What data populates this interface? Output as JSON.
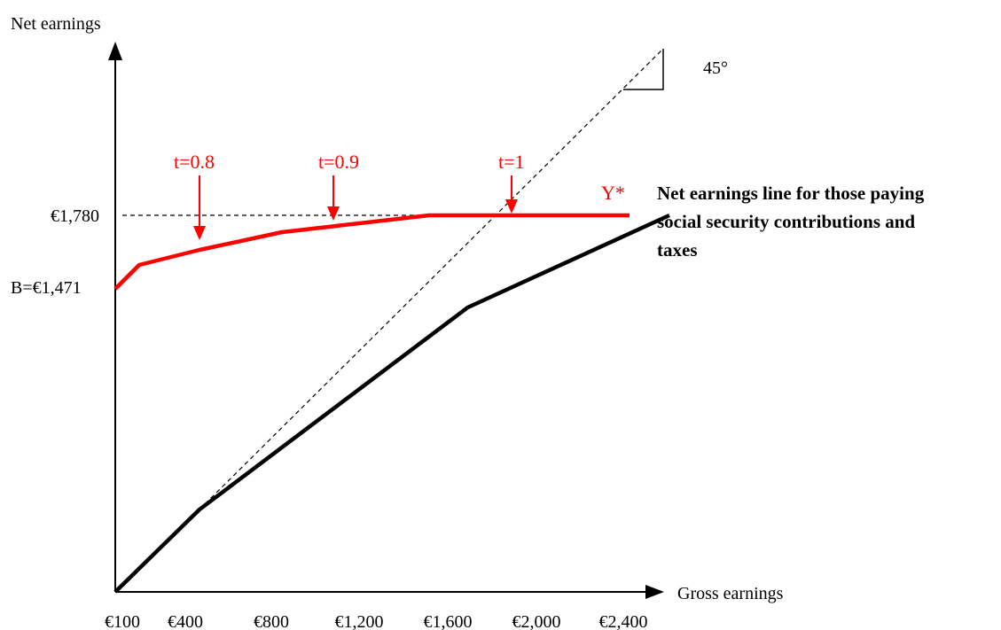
{
  "chart_data": {
    "type": "line",
    "title": "",
    "xlabel": "Gross earnings",
    "ylabel": "Net earnings",
    "x_ticks": [
      "€100",
      "€400",
      "€800",
      "€1,200",
      "€1,600",
      "€2,000",
      "€2,400"
    ],
    "y_ticks": [
      {
        "label": "€1,780",
        "value": 1780
      },
      {
        "label": "B=€1,471",
        "value": 1471
      }
    ],
    "angle_label": "45°",
    "colors": {
      "red": "#ff0000",
      "black": "#000000"
    },
    "series": [
      {
        "name": "Y*",
        "color": "#ff0000",
        "x": [
          0,
          100,
          400,
          800,
          1600,
          2500
        ],
        "y": [
          1471,
          1555,
          1625,
          1700,
          1780,
          1780
        ]
      },
      {
        "name": "Net earnings line for those paying social security contributions and taxes",
        "color": "#000000",
        "x": [
          0,
          400,
          1800,
          2600
        ],
        "y": [
          0,
          400,
          1360,
          1780
        ]
      }
    ],
    "reference_lines": [
      {
        "kind": "45-degree",
        "x": [
          400,
          2700
        ],
        "y": [
          400,
          2700
        ]
      },
      {
        "kind": "horizontal",
        "y": 1780,
        "x": [
          0,
          1600
        ]
      }
    ],
    "annotations": [
      {
        "text": "t=0.8",
        "x": 400,
        "y": 1625
      },
      {
        "text": "t=0.9",
        "x": 1050,
        "y": 1740
      },
      {
        "text": "t=1",
        "x": 1950,
        "y": 1780
      }
    ],
    "y_star_label": "Y*",
    "net_line_label": [
      "Net earnings line for those paying",
      "social security contributions and",
      "taxes"
    ]
  }
}
